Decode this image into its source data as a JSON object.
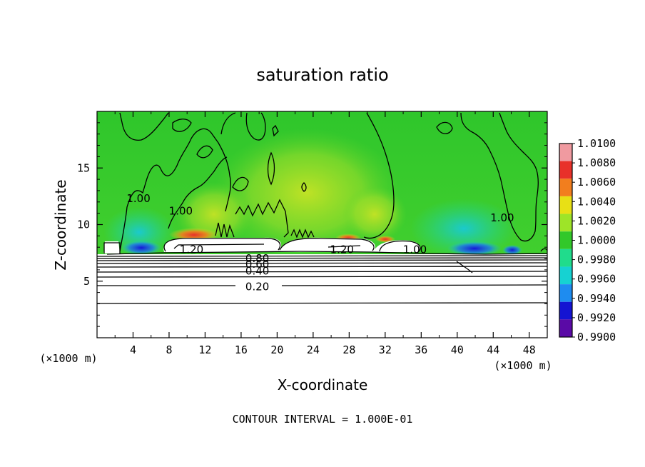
{
  "chart_data": {
    "type": "heatmap",
    "title": "saturation ratio",
    "xlabel": "X-coordinate",
    "ylabel": "Z-coordinate",
    "x_unit": "(×1000 m)",
    "xlim": [
      0,
      50
    ],
    "ylim": [
      0,
      20
    ],
    "x_ticks": [
      "4",
      "8",
      "12",
      "16",
      "20",
      "24",
      "28",
      "32",
      "36",
      "40",
      "44",
      "48"
    ],
    "y_ticks": [
      "5",
      "10",
      "15"
    ],
    "footer": "CONTOUR INTERVAL = 1.000E-01",
    "colorbar": {
      "levels": [
        "1.0100",
        "1.0080",
        "1.0060",
        "1.0040",
        "1.0020",
        "1.0000",
        "0.9980",
        "0.9960",
        "0.9940",
        "0.9920",
        "0.9900"
      ],
      "colors": [
        "#f09aa0",
        "#e8312a",
        "#f27e1e",
        "#e8e015",
        "#9ee428",
        "#32c82a",
        "#20dc8c",
        "#16d2d2",
        "#1e8cf0",
        "#1414d2",
        "#5a0aa6"
      ]
    },
    "contour_labels": [
      {
        "text": "1.20",
        "x": 10.5,
        "z": 7.8
      },
      {
        "text": "1.20",
        "x": 27.2,
        "z": 7.8
      },
      {
        "text": "1.00",
        "x": 35.3,
        "z": 7.8
      },
      {
        "text": "0.80",
        "x": 17.8,
        "z": 7.0
      },
      {
        "text": "0.60",
        "x": 17.8,
        "z": 6.5
      },
      {
        "text": "0.40",
        "x": 17.8,
        "z": 5.9
      },
      {
        "text": "0.20",
        "x": 17.8,
        "z": 4.5
      },
      {
        "text": "1.00",
        "x": 4.6,
        "z": 12.3
      },
      {
        "text": "1.00",
        "x": 9.3,
        "z": 11.2
      },
      {
        "text": "1.00",
        "x": 45.0,
        "z": 10.6
      }
    ]
  }
}
